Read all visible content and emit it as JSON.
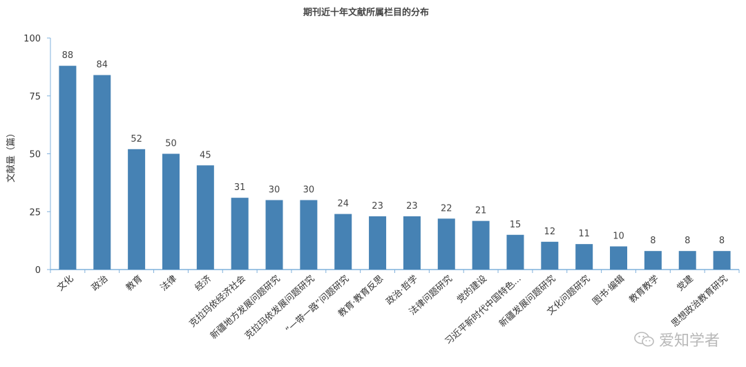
{
  "chart_data": {
    "type": "bar",
    "title": "期刊近十年文献所属栏目的分布",
    "ylabel": "文献量（篇）",
    "xlabel": "",
    "ylim": [
      0,
      100
    ],
    "yticks": [
      0,
      25,
      50,
      75,
      100
    ],
    "categories": [
      "文化",
      "政治",
      "教育",
      "法律",
      "经济",
      "克拉玛依经济社会",
      "新疆地方发展问题研究",
      "克拉玛依发展问题研究",
      "“一带一路”问题研究",
      "教育·教育反思",
      "政治·哲学",
      "法律问题研究",
      "党的建设",
      "习近平新时代中国特色...",
      "新疆发展问题研究",
      "文化问题研究",
      "图书·编辑",
      "教育教学",
      "党建",
      "思想政治教育研究"
    ],
    "values": [
      88,
      84,
      52,
      50,
      45,
      31,
      30,
      30,
      24,
      23,
      23,
      22,
      21,
      15,
      12,
      11,
      10,
      8,
      8,
      8
    ],
    "bar_color": "#4682b4",
    "axis_color": "#7fb0dc",
    "grid": false
  },
  "watermark": {
    "text": "爱知学者",
    "icon": "wechat-icon"
  }
}
